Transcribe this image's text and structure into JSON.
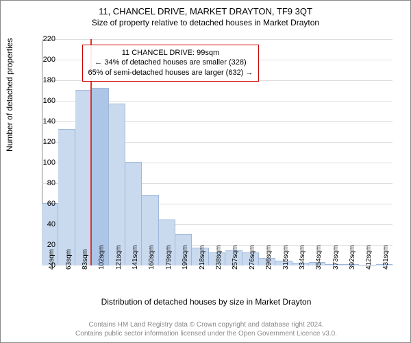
{
  "title_main": "11, CHANCEL DRIVE, MARKET DRAYTON, TF9 3QT",
  "title_sub": "Size of property relative to detached houses in Market Drayton",
  "y_axis_label": "Number of detached properties",
  "x_axis_label": "Distribution of detached houses by size in Market Drayton",
  "footer_line1": "Contains HM Land Registry data © Crown copyright and database right 2024.",
  "footer_line2": "Contains public sector information licensed under the Open Government Licence v3.0.",
  "chart": {
    "type": "histogram",
    "ylim": [
      0,
      220
    ],
    "ytick_step": 20,
    "bar_color": "#c9d9ee",
    "bar_border": "#9fb8da",
    "highlight_color": "#adc5e7",
    "marker_color": "#dd3030",
    "grid_color": "#dddddd",
    "axis_color": "#888888",
    "background_color": "#ffffff",
    "label_fontsize": 12,
    "tick_fontsize": 11,
    "categories": [
      "44sqm",
      "63sqm",
      "83sqm",
      "102sqm",
      "121sqm",
      "141sqm",
      "160sqm",
      "179sqm",
      "199sqm",
      "218sqm",
      "238sqm",
      "257sqm",
      "276sqm",
      "296sqm",
      "315sqm",
      "334sqm",
      "354sqm",
      "373sqm",
      "392sqm",
      "412sqm",
      "431sqm"
    ],
    "values": [
      60,
      132,
      170,
      172,
      157,
      100,
      68,
      44,
      30,
      17,
      12,
      14,
      12,
      7,
      4,
      2,
      3,
      1,
      1,
      0,
      1
    ],
    "highlight_index": 3,
    "marker_position": 2.9,
    "annotation": {
      "line1": "11 CHANCEL DRIVE: 99sqm",
      "line2": "← 34% of detached houses are smaller (328)",
      "line3": "65% of semi-detached houses are larger (632) →",
      "left_bar_index": 2.4,
      "top_value": 215,
      "border_color": "#cc0000"
    }
  }
}
